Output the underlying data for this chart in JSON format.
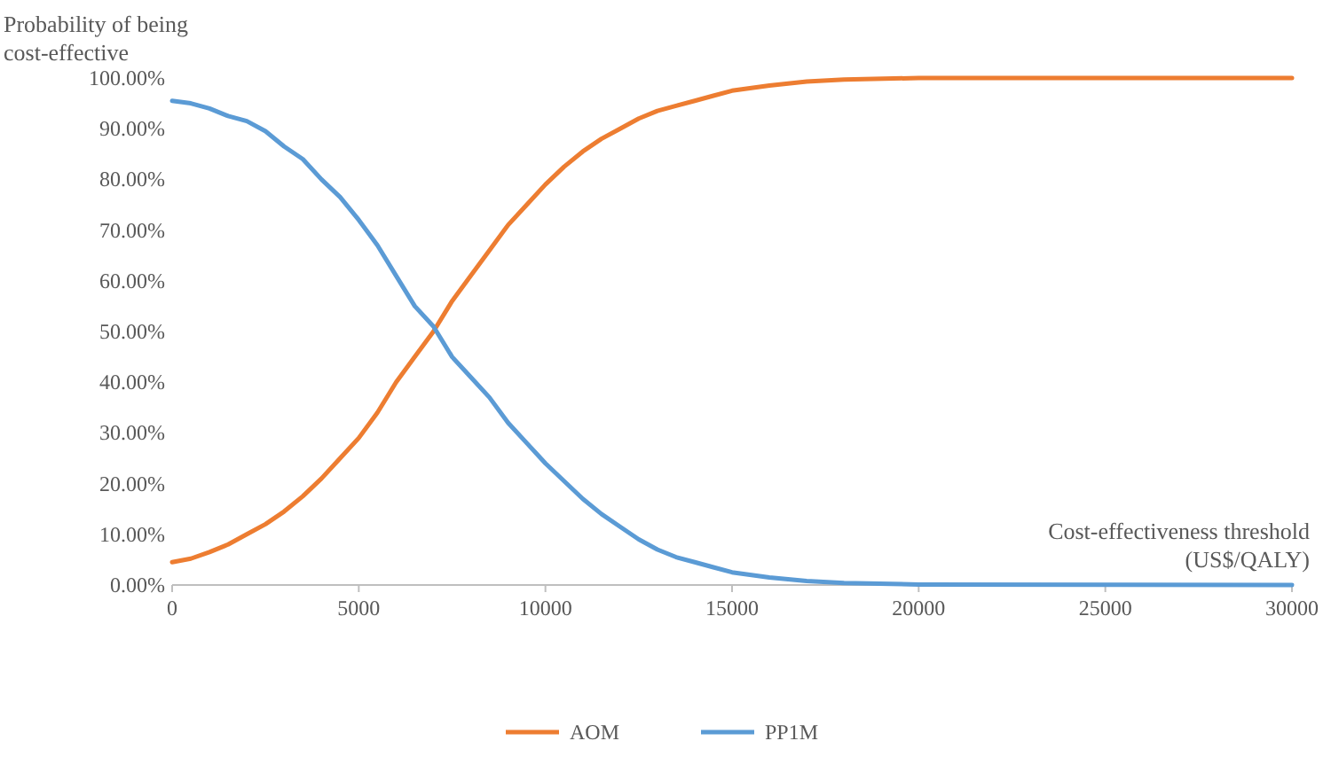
{
  "chart_data": {
    "type": "line",
    "ylabel": "Probability of being\ncost-effective",
    "xlabel": "Cost-effectiveness threshold\n(US$/QALY)",
    "x": [
      0,
      500,
      1000,
      1500,
      2000,
      2500,
      3000,
      3500,
      4000,
      4500,
      5000,
      5500,
      6000,
      6500,
      7000,
      7500,
      8000,
      8500,
      9000,
      9500,
      10000,
      10500,
      11000,
      11500,
      12000,
      12500,
      13000,
      13500,
      14000,
      14500,
      15000,
      16000,
      17000,
      18000,
      20000,
      30000
    ],
    "series": [
      {
        "name": "AOM",
        "color": "#ed7d31",
        "values": [
          4.5,
          5.2,
          6.5,
          8,
          10,
          12,
          14.5,
          17.5,
          21,
          25,
          29,
          34,
          40,
          45,
          50,
          56,
          61,
          66,
          71,
          75,
          79,
          82.5,
          85.5,
          88,
          90,
          92,
          93.5,
          94.5,
          95.5,
          96.5,
          97.5,
          98.5,
          99.3,
          99.7,
          100,
          100
        ]
      },
      {
        "name": "PP1M",
        "color": "#5b9bd5",
        "values": [
          95.5,
          95,
          94,
          92.5,
          91.5,
          89.5,
          86.5,
          84,
          80,
          76.5,
          72,
          67,
          61,
          55,
          51,
          45,
          41,
          37,
          32,
          28,
          24,
          20.5,
          17,
          14,
          11.5,
          9,
          7,
          5.5,
          4.5,
          3.5,
          2.5,
          1.5,
          0.8,
          0.4,
          0.1,
          0
        ]
      }
    ],
    "xlim": [
      0,
      30000
    ],
    "xticks": [
      0,
      5000,
      10000,
      15000,
      20000,
      25000,
      30000
    ],
    "ylim": [
      0,
      100
    ],
    "yticks": [
      {
        "value": 0,
        "label": "0.00%"
      },
      {
        "value": 10,
        "label": "10.00%"
      },
      {
        "value": 20,
        "label": "20.00%"
      },
      {
        "value": 30,
        "label": "30.00%"
      },
      {
        "value": 40,
        "label": "40.00%"
      },
      {
        "value": 50,
        "label": "50.00%"
      },
      {
        "value": 60,
        "label": "60.00%"
      },
      {
        "value": 70,
        "label": "70.00%"
      },
      {
        "value": 80,
        "label": "80.00%"
      },
      {
        "value": 90,
        "label": "90.00%"
      },
      {
        "value": 100,
        "label": "100.00%"
      }
    ],
    "legend": "bottom",
    "grid": false,
    "marker": "none",
    "line_style": "solid"
  }
}
